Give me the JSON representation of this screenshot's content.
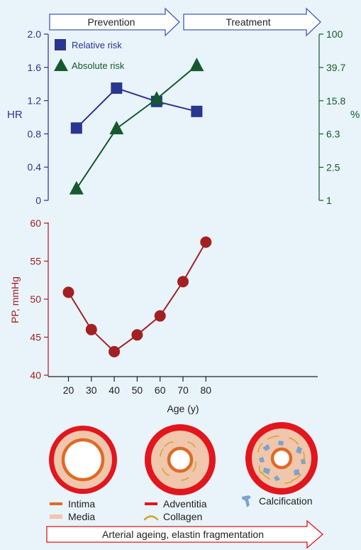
{
  "colors": {
    "background": "#e9f3fa",
    "phase_arrow_fill": "#ffffff",
    "phase_arrow_stroke": "#3f5fbf",
    "relative_risk": "#2a3591",
    "absolute_risk": "#145a2e",
    "pp_series": "#a31f22",
    "intima": "#e06a24",
    "media": "#f0c6ad",
    "adventitia": "#e2161d",
    "collagen": "#d6a32c",
    "calcification": "#7ea2cc",
    "ageing_arrow_stroke": "#e2161d"
  },
  "phases": {
    "prevention": "Prevention",
    "treatment": "Treatment"
  },
  "chart_data": [
    {
      "type": "line",
      "x_axis": "shared with lower panel (Age, y)",
      "y_left": {
        "label": "HR",
        "ticks": [
          "0",
          "0.4",
          "0.8",
          "1.2",
          "1.6",
          "2.0"
        ],
        "ylim": [
          0,
          2.0
        ]
      },
      "y_right": {
        "label": "%",
        "scale": "log",
        "ticks": [
          "1",
          "2.5",
          "6.3",
          "15.8",
          "39.7",
          "100"
        ],
        "ylim": [
          1,
          100
        ]
      },
      "legend_placement": "top-left",
      "series": [
        {
          "name": "Relative risk",
          "marker": "square",
          "axis": "left",
          "x": [
            23.5,
            41,
            58.5,
            76
          ],
          "values": [
            0.87,
            1.35,
            1.19,
            1.07
          ]
        },
        {
          "name": "Absolute risk",
          "marker": "triangle",
          "axis": "right",
          "x": [
            23.5,
            41,
            58.5,
            76
          ],
          "values": [
            1.38,
            7.3,
            16.6,
            42
          ]
        }
      ]
    },
    {
      "type": "line",
      "xlabel": "Age (y)",
      "ylabel": "PP, mmHg",
      "x_ticks": [
        "20",
        "30",
        "40",
        "50",
        "60",
        "70",
        "80"
      ],
      "y_ticks": [
        "40",
        "45",
        "50",
        "55",
        "60"
      ],
      "xlim": [
        15,
        85
      ],
      "ylim": [
        40,
        60
      ],
      "series": [
        {
          "name": "",
          "x": [
            20,
            30,
            40,
            50,
            60,
            70,
            80
          ],
          "values": [
            50.9,
            46.0,
            43.1,
            45.3,
            47.8,
            52.3,
            57.5
          ]
        }
      ]
    }
  ],
  "diagram": {
    "vessels": [
      "young",
      "middle",
      "old"
    ],
    "legend": {
      "intima": "Intima",
      "media": "Media",
      "adventitia": "Adventitia",
      "collagen": "Collagen",
      "calcification": "Calcification"
    },
    "ageing_arrow": "Arterial ageing, elastin fragmentation"
  }
}
